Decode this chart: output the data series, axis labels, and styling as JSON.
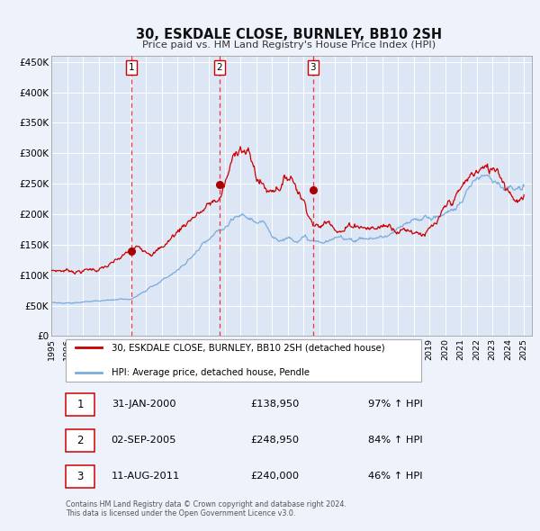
{
  "title": "30, ESKDALE CLOSE, BURNLEY, BB10 2SH",
  "subtitle": "Price paid vs. HM Land Registry's House Price Index (HPI)",
  "background_color": "#eef2fb",
  "plot_bg_color": "#dde6f5",
  "grid_color": "#ffffff",
  "ylim": [
    0,
    460000
  ],
  "yticks": [
    0,
    50000,
    100000,
    150000,
    200000,
    250000,
    300000,
    350000,
    400000,
    450000
  ],
  "ytick_labels": [
    "£0",
    "£50K",
    "£100K",
    "£150K",
    "£200K",
    "£250K",
    "£300K",
    "£350K",
    "£400K",
    "£450K"
  ],
  "xlim_start": 1995.0,
  "xlim_end": 2025.5,
  "xtick_years": [
    1995,
    1996,
    1997,
    1998,
    1999,
    2000,
    2001,
    2002,
    2003,
    2004,
    2005,
    2006,
    2007,
    2008,
    2009,
    2010,
    2011,
    2012,
    2013,
    2014,
    2015,
    2016,
    2017,
    2018,
    2019,
    2020,
    2021,
    2022,
    2023,
    2024,
    2025
  ],
  "sale_color": "#cc0000",
  "hpi_color": "#7aabdb",
  "marker_color": "#aa0000",
  "vline_color": "#ee3333",
  "sale_label": "30, ESKDALE CLOSE, BURNLEY, BB10 2SH (detached house)",
  "hpi_label": "HPI: Average price, detached house, Pendle",
  "transactions": [
    {
      "num": 1,
      "date_x": 2000.08,
      "price": 138950,
      "pct": "97%",
      "date_str": "31-JAN-2000"
    },
    {
      "num": 2,
      "date_x": 2005.67,
      "price": 248950,
      "pct": "84%",
      "date_str": "02-SEP-2005"
    },
    {
      "num": 3,
      "date_x": 2011.61,
      "price": 240000,
      "pct": "46%",
      "date_str": "11-AUG-2011"
    }
  ],
  "footer": "Contains HM Land Registry data © Crown copyright and database right 2024.\nThis data is licensed under the Open Government Licence v3.0.",
  "legend_box_color": "#ffffff",
  "legend_border_color": "#aaaaaa"
}
